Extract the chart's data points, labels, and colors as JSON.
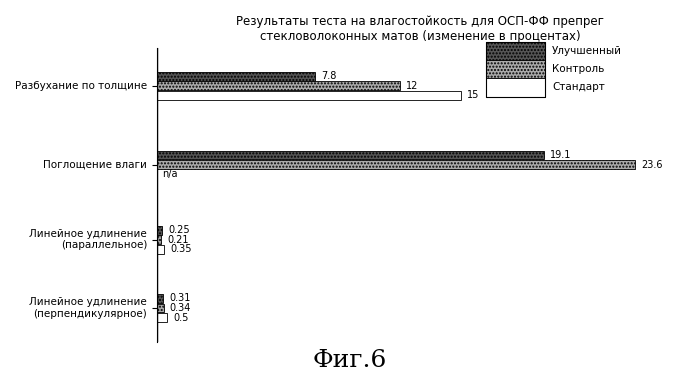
{
  "title": "Результаты теста на влагостойкость для ОСП-ФФ препрег\nстекловолоконных матов (изменение в процентах)",
  "fig_label": "Фиг.6",
  "categories": [
    "Разбухание по толщине",
    "Поглощение влаги",
    "Линейное удлинение\n(параллельное)",
    "Линейное удлинение\n(перпендикулярное)"
  ],
  "series": [
    {
      "name": "Улучшенный",
      "color": "#555555",
      "hatch": ".....",
      "values": [
        7.8,
        19.1,
        0.25,
        0.31
      ],
      "labels": [
        "7.8",
        "19.1",
        "0.25",
        "0.31"
      ],
      "na_index": -1
    },
    {
      "name": "Контроль",
      "color": "#aaaaaa",
      "hatch": ".....",
      "values": [
        12,
        23.6,
        0.21,
        0.34
      ],
      "labels": [
        "12",
        "23.6",
        "0.21",
        "0.34"
      ],
      "na_index": -1
    },
    {
      "name": "Стандарт",
      "color": "#ffffff",
      "hatch": "",
      "values": [
        15,
        0,
        0.35,
        0.5
      ],
      "labels": [
        "15",
        "n/a",
        "0.35",
        "0.5"
      ],
      "na_index": 1
    }
  ],
  "xlim": [
    0,
    26
  ],
  "bar_height": 0.13,
  "group_centers": [
    3.3,
    2.15,
    1.05,
    0.05
  ],
  "offsets": [
    0.14,
    0.0,
    -0.14
  ],
  "background_color": "#ffffff"
}
